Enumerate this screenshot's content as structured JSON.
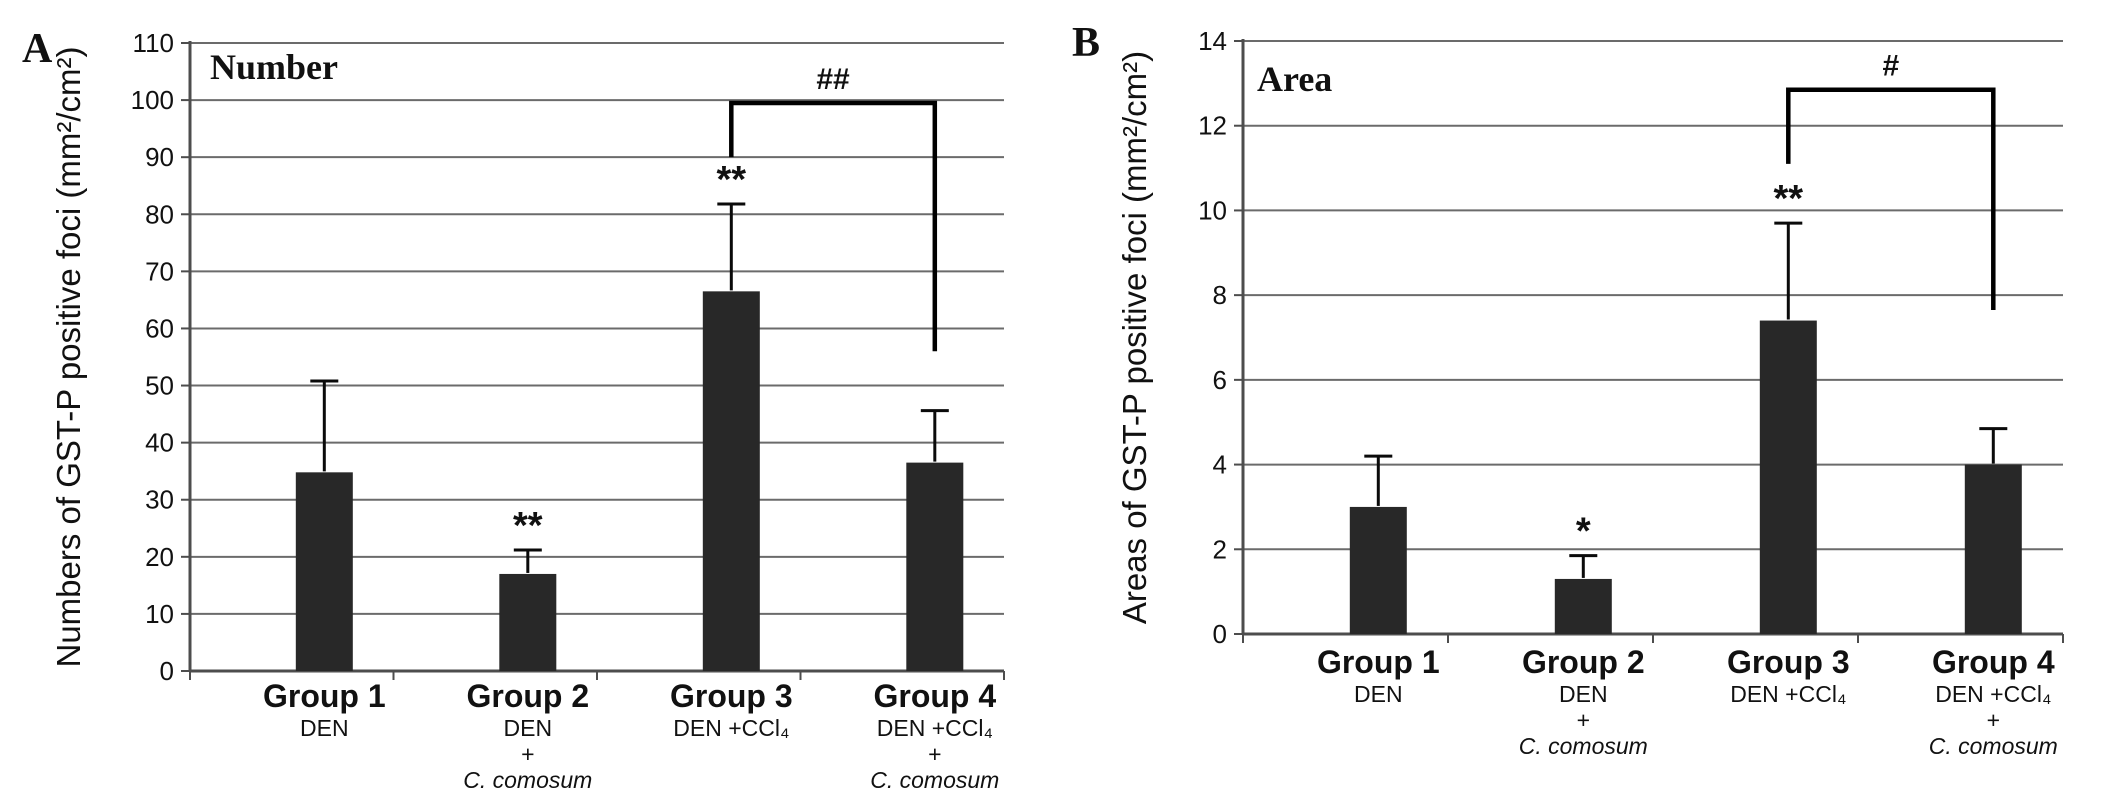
{
  "chart_data": [
    {
      "type": "bar",
      "panel_letter": "A",
      "inner_title": "Number",
      "ylabel": "Numbers of GST-P positive foci (mm²/cm²)",
      "xlabel": "",
      "ylim": [
        0,
        110
      ],
      "yticks": [
        0,
        10,
        20,
        30,
        40,
        50,
        60,
        70,
        80,
        90,
        100,
        110
      ],
      "grid": true,
      "legend": "none",
      "categories": [
        "Group 1",
        "Group 2",
        "Group 3",
        "Group 4"
      ],
      "category_sublabels": [
        [
          {
            "text": "DEN",
            "italic": false
          }
        ],
        [
          {
            "text": "DEN",
            "italic": false
          },
          {
            "text": "+",
            "italic": false
          },
          {
            "text": "C. comosum",
            "italic": true
          }
        ],
        [
          {
            "text": "DEN +CCl₄",
            "italic": false
          }
        ],
        [
          {
            "text": "DEN +CCl₄",
            "italic": false
          },
          {
            "text": "+",
            "italic": false
          },
          {
            "text": "C. comosum",
            "italic": true
          }
        ]
      ],
      "values": [
        34.8,
        17.0,
        66.5,
        36.5
      ],
      "errors_upper": [
        16.0,
        4.2,
        15.3,
        9.1
      ],
      "sig_markers": [
        "",
        "**",
        "**",
        ""
      ],
      "bracket": {
        "label": "##",
        "from_index": 2,
        "to_index": 3,
        "top_value": 99.5,
        "left_leg_bottom_value": 90.0,
        "right_leg_bottom_value": 56.0
      },
      "bar_color": "#282828"
    },
    {
      "type": "bar",
      "panel_letter": "B",
      "inner_title": "Area",
      "ylabel": "Areas of GST-P positive foci (mm²/cm²)",
      "xlabel": "",
      "ylim": [
        0,
        14
      ],
      "yticks": [
        0,
        2,
        4,
        6,
        8,
        10,
        12,
        14
      ],
      "grid": true,
      "legend": "none",
      "categories": [
        "Group 1",
        "Group 2",
        "Group 3",
        "Group 4"
      ],
      "category_sublabels": [
        [
          {
            "text": "DEN",
            "italic": false
          }
        ],
        [
          {
            "text": "DEN",
            "italic": false
          },
          {
            "text": "+",
            "italic": false
          },
          {
            "text": "C. comosum",
            "italic": true
          }
        ],
        [
          {
            "text": "DEN +CCl₄",
            "italic": false
          }
        ],
        [
          {
            "text": "DEN +CCl₄",
            "italic": false
          },
          {
            "text": "+",
            "italic": false
          },
          {
            "text": "C. comosum",
            "italic": true
          }
        ]
      ],
      "values": [
        3.0,
        1.3,
        7.4,
        4.0
      ],
      "errors_upper": [
        1.2,
        0.55,
        2.3,
        0.85
      ],
      "sig_markers": [
        "",
        "*",
        "**",
        ""
      ],
      "bracket": {
        "label": "#",
        "from_index": 2,
        "to_index": 3,
        "top_value": 12.85,
        "left_leg_bottom_value": 11.1,
        "right_leg_bottom_value": 7.65
      },
      "bar_color": "#282828"
    }
  ],
  "style_colors": {
    "bar": "#282828",
    "gridline": "#6b6b6b",
    "axis": "#4d4d4d",
    "error_bar": "#0a0a0a",
    "bracket": "#000000",
    "background": "#ffffff"
  }
}
